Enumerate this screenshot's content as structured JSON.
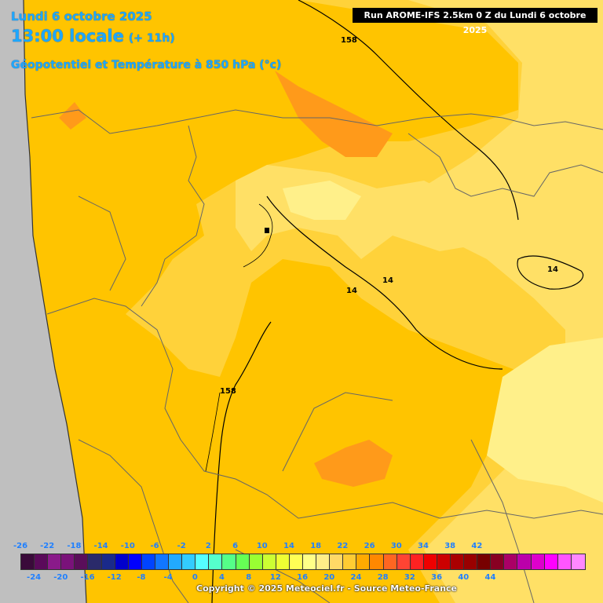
{
  "header": {
    "date": "Lundi 6 octobre 2025",
    "time": "13:00 locale",
    "offset": "(+ 11h)",
    "title": "Géopotentiel et Température à 850 hPa (°c)",
    "run": "Run AROME-IFS 2.5km 0 Z du Lundi 6 octobre 2025"
  },
  "contour_labels": {
    "geopotential_top": "158",
    "geopotential_bottom": "158",
    "isotherm_center": "14",
    "isotherm_mid": "14",
    "isotherm_right": "14"
  },
  "legend": {
    "colors": [
      "#3a0a3a",
      "#5a0a5a",
      "#8a1a8a",
      "#7a127a",
      "#5a0e5a",
      "#2a2a6a",
      "#1a2a8a",
      "#0000cc",
      "#0000ff",
      "#0044ff",
      "#1177ff",
      "#22aaff",
      "#33ccff",
      "#55ffff",
      "#55ffcc",
      "#55ff88",
      "#66ff55",
      "#99ff33",
      "#ccff33",
      "#eeff33",
      "#ffff55",
      "#ffff88",
      "#ffee88",
      "#ffd966",
      "#ffcc33",
      "#ffaa00",
      "#ff8800",
      "#ff6622",
      "#ff4433",
      "#ff2222",
      "#ee0000",
      "#cc0000",
      "#aa0000",
      "#990000",
      "#770000",
      "#880022",
      "#aa0066",
      "#bb00aa",
      "#dd00cc",
      "#ff00ff",
      "#ff55ff",
      "#ff88ff"
    ],
    "top_ticks": [
      "-26",
      "-22",
      "-18",
      "-14",
      "-10",
      "-6",
      "-2",
      "2",
      "6",
      "10",
      "14",
      "18",
      "22",
      "26",
      "30",
      "34",
      "38",
      "42"
    ],
    "bottom_ticks": [
      "-24",
      "-20",
      "-16",
      "-12",
      "-8",
      "-4",
      "0",
      "4",
      "8",
      "12",
      "16",
      "20",
      "24",
      "28",
      "32",
      "36",
      "40",
      "44"
    ]
  },
  "copyright": "Copyright © 2025 Meteociel.fr - Source Meteo-France"
}
